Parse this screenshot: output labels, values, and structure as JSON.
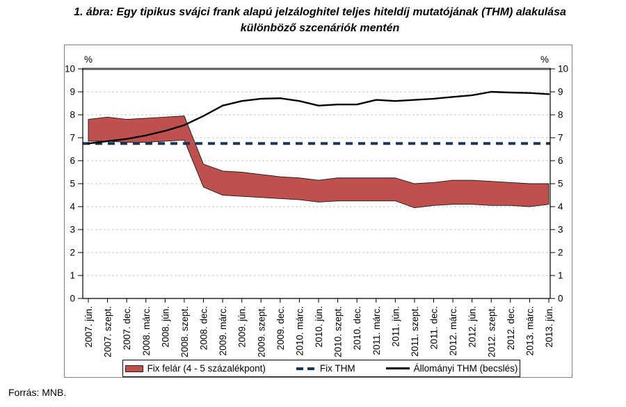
{
  "title": {
    "line1": "1. ábra: Egy tipikus svájci frank alapú jelzáloghitel teljes hiteldíj mutatójának (THM) alakulása",
    "line2": "különböző szcenáriók mentén"
  },
  "source": "Forrás: MNB.",
  "legend": {
    "items": [
      {
        "label": "Fix felár (4 - 5 százalékpont)",
        "type": "band",
        "color": "#C0504D"
      },
      {
        "label": "Fix THM",
        "type": "dashed-line",
        "color": "#17375E"
      },
      {
        "label": "Állományi THM (becslés)",
        "type": "line",
        "color": "#000000"
      }
    ],
    "position": "bottom"
  },
  "chart_data": {
    "type": "area",
    "unit_label": "%",
    "ylim": [
      0,
      10
    ],
    "y_ticks": [
      0,
      1,
      2,
      3,
      4,
      5,
      6,
      7,
      8,
      9,
      10
    ],
    "grid": true,
    "legend_position": "bottom",
    "categories": [
      "2007. jún.",
      "2007. szept.",
      "2007. dec.",
      "2008. márc.",
      "2008. jún.",
      "2008. szept.",
      "2008. dec.",
      "2009. márc.",
      "2009. jún.",
      "2009. szept.",
      "2009. dec.",
      "2010. márc.",
      "2010. jún.",
      "2010. szept.",
      "2010. dec.",
      "2011. márc.",
      "2011. jún.",
      "2011. szept.",
      "2011. dec.",
      "2012. márc.",
      "2012. jún.",
      "2012. szept.",
      "2012. dec.",
      "2013. márc.",
      "2013. jún."
    ],
    "series": [
      {
        "name": "Fix felár (4 - 5 százalékpont)",
        "type": "band",
        "color": "#C0504D",
        "upper": [
          7.8,
          7.9,
          7.8,
          7.85,
          7.9,
          7.95,
          5.85,
          5.55,
          5.5,
          5.4,
          5.3,
          5.25,
          5.15,
          5.25,
          5.25,
          5.25,
          5.25,
          5.0,
          5.05,
          5.15,
          5.15,
          5.1,
          5.05,
          5.0,
          5.0
        ],
        "lower": [
          6.85,
          6.85,
          6.8,
          6.8,
          6.85,
          6.9,
          4.85,
          4.5,
          4.45,
          4.4,
          4.35,
          4.3,
          4.2,
          4.25,
          4.25,
          4.25,
          4.25,
          3.95,
          4.05,
          4.1,
          4.1,
          4.05,
          4.05,
          4.0,
          4.1
        ]
      },
      {
        "name": "Fix THM",
        "type": "line",
        "style": "dashed",
        "color": "#17375E",
        "value": 6.75
      },
      {
        "name": "Állományi THM (becslés)",
        "type": "line",
        "style": "solid",
        "color": "#000000",
        "values": [
          6.75,
          6.85,
          6.95,
          7.1,
          7.3,
          7.55,
          7.95,
          8.4,
          8.6,
          8.7,
          8.72,
          8.6,
          8.4,
          8.45,
          8.45,
          8.65,
          8.6,
          8.65,
          8.7,
          8.78,
          8.85,
          9.0,
          8.97,
          8.95,
          8.9
        ]
      }
    ]
  }
}
